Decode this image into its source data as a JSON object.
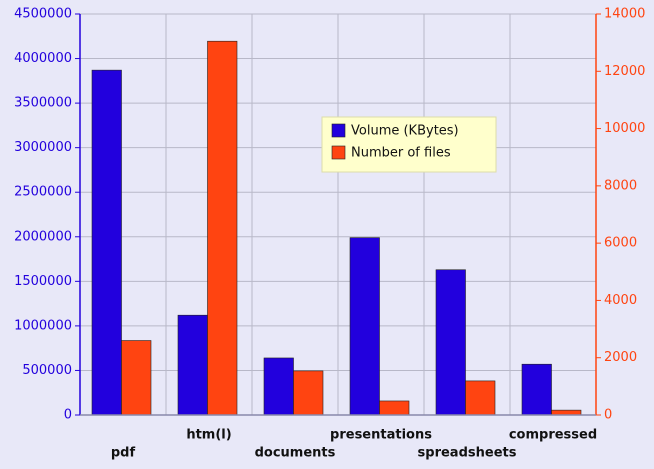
{
  "chart_data": {
    "type": "bar",
    "categories": [
      "pdf",
      "htm(l)",
      "documents",
      "presentations",
      "spreadsheets",
      "compressed"
    ],
    "series": [
      {
        "name": "Volume (KBytes)",
        "color": "#2200dd",
        "values": [
          3870000,
          1120000,
          640000,
          1990000,
          1630000,
          570000
        ]
      },
      {
        "name": "Number of files",
        "color": "#ff4411",
        "axis": "y2",
        "values": [
          2600,
          13050,
          1540,
          490,
          1190,
          170
        ]
      }
    ],
    "ylim": [
      0,
      4500000
    ],
    "yticks": [
      0,
      500000,
      1000000,
      1500000,
      2000000,
      2500000,
      3000000,
      3500000,
      4000000,
      4500000
    ],
    "y2lim": [
      0,
      14000
    ],
    "y2ticks": [
      0,
      2000,
      4000,
      6000,
      8000,
      10000,
      12000,
      14000
    ],
    "grid": true
  }
}
